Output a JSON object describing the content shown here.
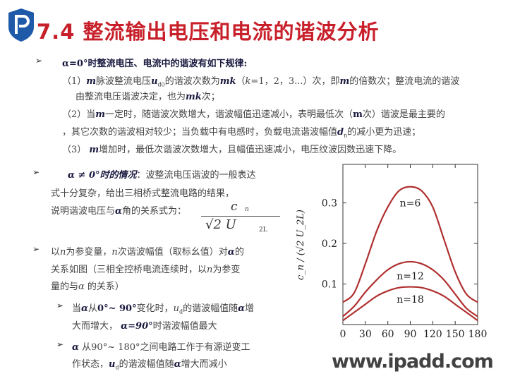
{
  "header": {
    "watermark": "www.ipadd.com",
    "title": "7.4  整流输出电压和电流的谐波分析"
  },
  "lines": [
    [
      {
        "t": "α=0°时整流电压、电流中的谐波有如下规律:",
        "s": "b"
      }
    ],
    [
      {
        "t": "（1）"
      },
      {
        "t": "m",
        "s": "bi"
      },
      {
        "t": "脉波整流电压"
      },
      {
        "t": "u",
        "s": "bi"
      },
      {
        "t": "d0",
        "s": "sub"
      },
      {
        "t": "的谐波次数为"
      },
      {
        "t": "mk",
        "s": "bi"
      },
      {
        "t": "（"
      },
      {
        "t": "k",
        "s": "i"
      },
      {
        "t": "=1，2，3...）次，即"
      },
      {
        "t": "m",
        "s": "bi"
      },
      {
        "t": "的倍数次；整流电流的谐波"
      }
    ],
    [
      {
        "t": "由整流电压谐波决定，也为"
      },
      {
        "t": "mk",
        "s": "bi"
      },
      {
        "t": "次；"
      }
    ],
    [
      {
        "t": "（2）当"
      },
      {
        "t": "m",
        "s": "bi"
      },
      {
        "t": "一定时，随谐波次数增大，谐波幅值迅速减小，表明最低次（"
      },
      {
        "t": "m",
        "s": "b"
      },
      {
        "t": "次）谐波是最主要的"
      }
    ],
    [
      {
        "t": "，其它次数的谐波相对较少；当负载中有电感时，负载电流谐波幅值"
      },
      {
        "t": "d",
        "s": "bi"
      },
      {
        "t": "n",
        "s": "sub"
      },
      {
        "t": "的减小更为迅速；"
      }
    ],
    [
      {
        "t": "（3） "
      },
      {
        "t": "m",
        "s": "bi"
      },
      {
        "t": "增加时，最低次谐波次数增大，且幅值迅速减小，电压纹波因数迅速下降。"
      }
    ],
    [
      {
        "t": "α ≠ 0°时的情况",
        "s": "bi"
      },
      {
        "t": "：波整流电压谐波的一般表达"
      }
    ],
    [
      {
        "t": "式十分复杂，给出三相桥式整流电路的结果，"
      }
    ],
    [
      {
        "t": "说明谐波电压与"
      },
      {
        "t": "α",
        "s": "bi"
      },
      {
        "t": "角的关系式为："
      }
    ],
    [
      {
        "t": "以"
      },
      {
        "t": "n",
        "s": "i"
      },
      {
        "t": "为参变量，"
      },
      {
        "t": "n",
        "s": "i"
      },
      {
        "t": "次谐波幅值（取标幺值）对"
      },
      {
        "t": "α",
        "s": "bi"
      },
      {
        "t": "的"
      }
    ],
    [
      {
        "t": "关系如图（三相全控桥电流连续时，以"
      },
      {
        "t": "n",
        "s": "i"
      },
      {
        "t": "为参变"
      }
    ],
    [
      {
        "t": "量的与"
      },
      {
        "t": "α",
        "s": "i"
      },
      {
        "t": " 的关系）"
      }
    ],
    [
      {
        "t": "当"
      },
      {
        "t": "α",
        "s": "bi"
      },
      {
        "t": "从"
      },
      {
        "t": "0°~ 90°",
        "s": "b"
      },
      {
        "t": "变化时，"
      },
      {
        "t": "u",
        "s": "i"
      },
      {
        "t": "d",
        "s": "sub"
      },
      {
        "t": "的谐波幅值随"
      },
      {
        "t": "α",
        "s": "bi"
      },
      {
        "t": "增"
      }
    ],
    [
      {
        "t": "大而增大，  "
      },
      {
        "t": "α=90°",
        "s": "bi"
      },
      {
        "t": "时谐波幅值最大"
      }
    ],
    [
      {
        "t": "α",
        "s": "bi"
      },
      {
        "t": " 从90°~ 180°之间电路工作于有源逆变工"
      }
    ],
    [
      {
        "t": "作状态，"
      },
      {
        "t": "u",
        "s": "bi"
      },
      {
        "t": "d",
        "s": "sub"
      },
      {
        "t": "的谐波幅值随"
      },
      {
        "t": "α",
        "s": "bi"
      },
      {
        "t": "增大而减小"
      }
    ]
  ],
  "formula": {
    "num": "c",
    "num_sub": "n",
    "den": "√2 U",
    "den_sub": "2L"
  },
  "chart_data": {
    "type": "line",
    "ylabel": "c_n / (√2 U_2L)",
    "xlim": [
      0,
      180
    ],
    "ylim": [
      0,
      0.395
    ],
    "xticks": [
      "0",
      "30",
      "60",
      "90",
      "120",
      "150",
      "180"
    ],
    "yticks": [
      "0.1",
      "0.2",
      "0.3"
    ],
    "grid": false,
    "x": [
      0,
      15,
      30,
      45,
      60,
      75,
      90,
      105,
      120,
      135,
      150,
      165,
      180
    ],
    "series": [
      {
        "name": "n=6",
        "values": [
          0.055,
          0.078,
          0.15,
          0.23,
          0.29,
          0.33,
          0.34,
          0.33,
          0.29,
          0.21,
          0.13,
          0.075,
          0.055
        ]
      },
      {
        "name": "n=12",
        "values": [
          0.02,
          0.045,
          0.08,
          0.11,
          0.135,
          0.15,
          0.155,
          0.15,
          0.135,
          0.11,
          0.075,
          0.04,
          0.02
        ]
      },
      {
        "name": "n=18",
        "values": [
          0.01,
          0.03,
          0.05,
          0.07,
          0.083,
          0.091,
          0.093,
          0.091,
          0.083,
          0.07,
          0.05,
          0.03,
          0.01
        ]
      }
    ],
    "label_y": [
      0.3,
      0.12,
      0.063
    ],
    "line_color": "#b03030"
  }
}
